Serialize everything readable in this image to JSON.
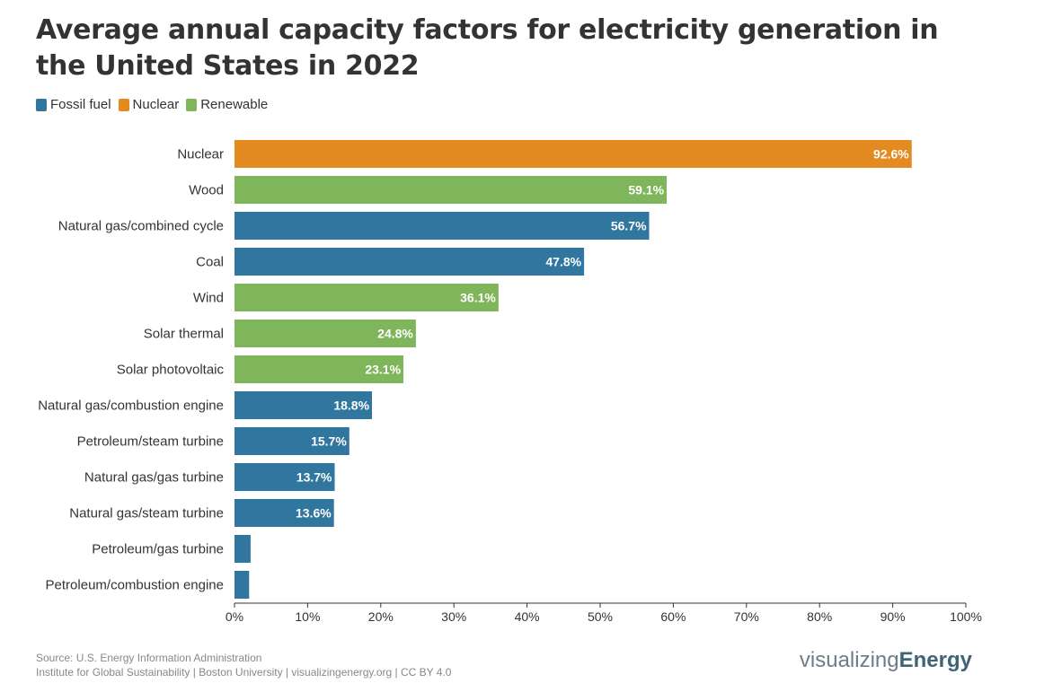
{
  "title": "Average annual capacity factors for electricity generation in the United States in 2022",
  "colors": {
    "Fossil fuel": "#31769f",
    "Nuclear": "#e38a21",
    "Renewable": "#7fb55b"
  },
  "legend": [
    {
      "label": "Fossil fuel",
      "color": "#31769f"
    },
    {
      "label": "Nuclear",
      "color": "#e38a21"
    },
    {
      "label": "Renewable",
      "color": "#7fb55b"
    }
  ],
  "chart_data": {
    "type": "bar",
    "orientation": "horizontal",
    "categories": [
      "Nuclear",
      "Wood",
      "Natural gas/combined cycle",
      "Coal",
      "Wind",
      "Solar thermal",
      "Solar photovoltaic",
      "Natural gas/combustion engine",
      "Petroleum/steam turbine",
      "Natural gas/gas turbine",
      "Natural gas/steam turbine",
      "Petroleum/gas turbine",
      "Petroleum/combustion engine"
    ],
    "values": [
      92.6,
      59.1,
      56.7,
      47.8,
      36.1,
      24.8,
      23.1,
      18.8,
      15.7,
      13.7,
      13.6,
      2.2,
      2.0
    ],
    "labels": [
      "92.6%",
      "59.1%",
      "56.7%",
      "47.8%",
      "36.1%",
      "24.8%",
      "23.1%",
      "18.8%",
      "15.7%",
      "13.7%",
      "13.6%",
      "",
      ""
    ],
    "groups": [
      "Nuclear",
      "Renewable",
      "Fossil fuel",
      "Fossil fuel",
      "Renewable",
      "Renewable",
      "Renewable",
      "Fossil fuel",
      "Fossil fuel",
      "Fossil fuel",
      "Fossil fuel",
      "Fossil fuel",
      "Fossil fuel"
    ],
    "xlim": [
      0,
      100
    ],
    "xticks": [
      "0%",
      "10%",
      "20%",
      "30%",
      "40%",
      "50%",
      "60%",
      "70%",
      "80%",
      "90%",
      "100%"
    ],
    "grid": false,
    "legend_position": "top-left"
  },
  "footer": {
    "source": "Source: U.S. Energy Information Administration",
    "credit": "Institute for Global Sustainability | Boston University | visualizingenergy.org | CC BY 4.0"
  },
  "brand": {
    "part1": "visualizing",
    "part2": "Energy"
  }
}
